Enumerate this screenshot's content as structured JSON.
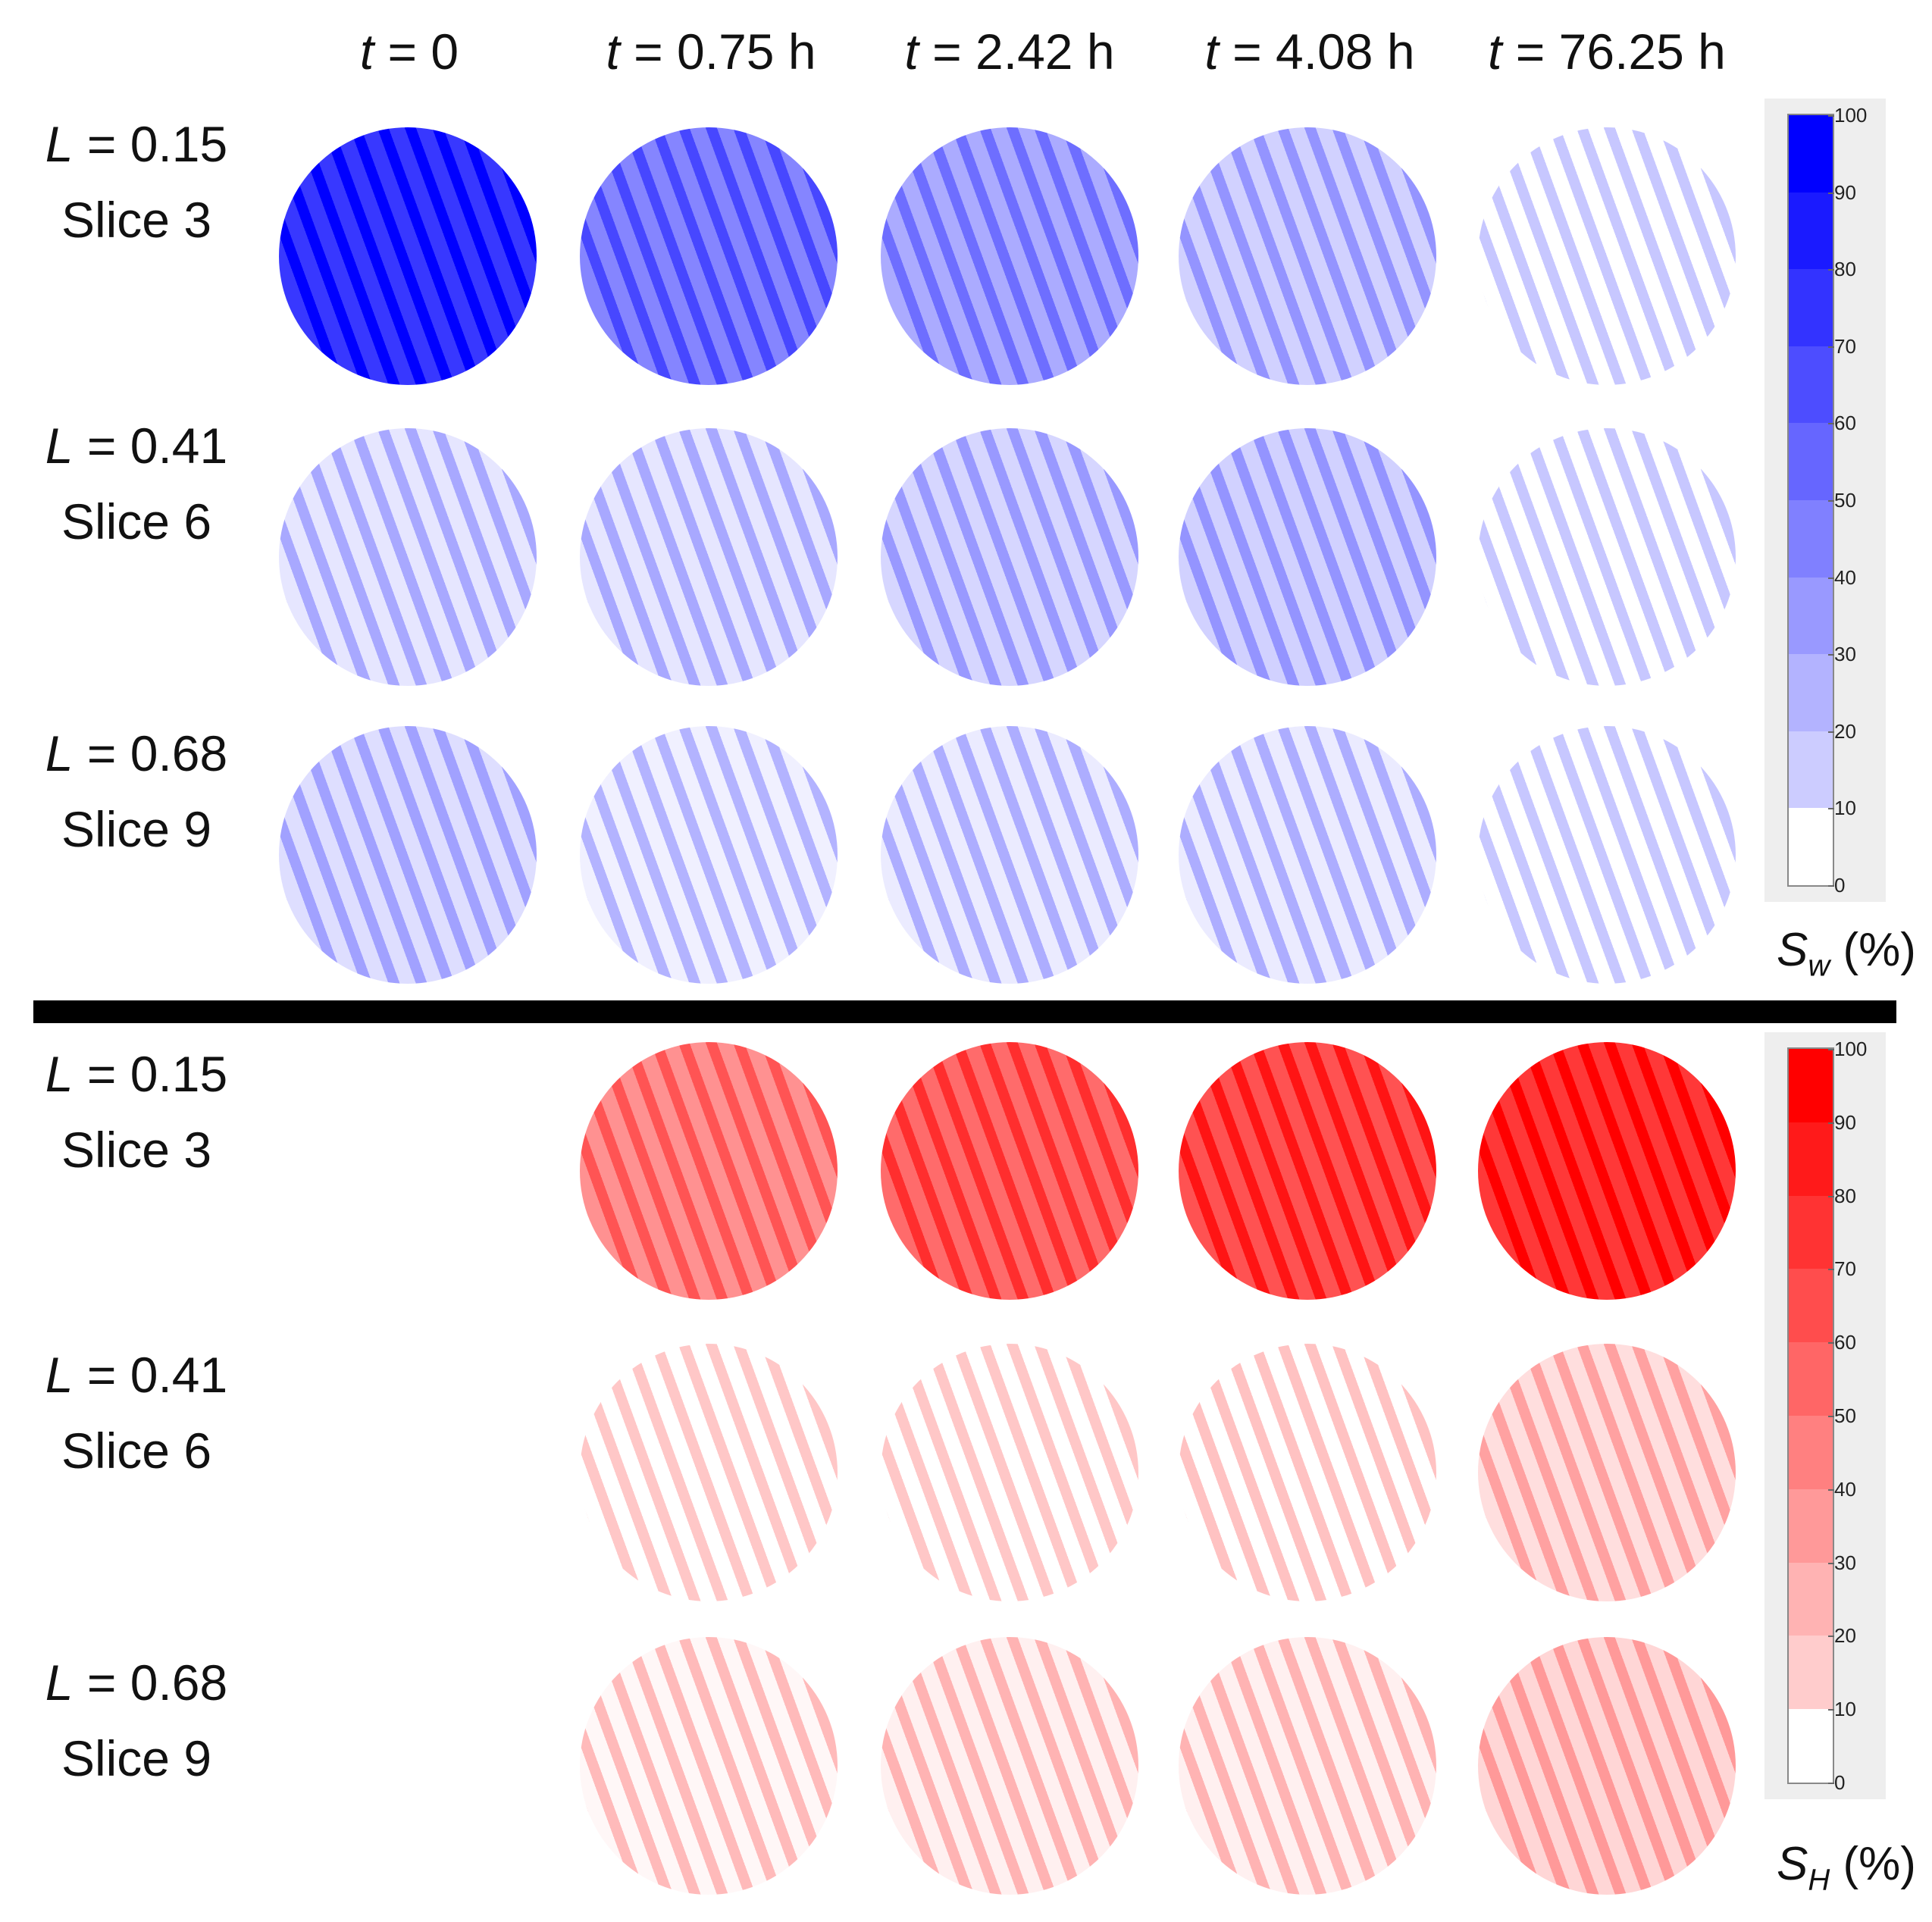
{
  "time_labels": [
    {
      "var": "t",
      "eq": " = ",
      "val": "0"
    },
    {
      "var": "t",
      "eq": " = ",
      "val": "0.75 h"
    },
    {
      "var": "t",
      "eq": " = ",
      "val": "2.42 h"
    },
    {
      "var": "t",
      "eq": " = ",
      "val": "4.08 h"
    },
    {
      "var": "t",
      "eq": " = ",
      "val": "76.25 h"
    }
  ],
  "water_panel": {
    "rows": [
      {
        "l_var": "L",
        "l_eq": " = ",
        "l_val": "0.15",
        "slice": "Slice 3",
        "levels": [
          90,
          60,
          45,
          30,
          10
        ]
      },
      {
        "l_var": "L",
        "l_eq": " = ",
        "l_val": "0.41",
        "slice": "Slice 6",
        "levels": [
          22,
          22,
          28,
          30,
          10
        ]
      },
      {
        "l_var": "L",
        "l_eq": " = ",
        "l_val": "0.68",
        "slice": "Slice 9",
        "levels": [
          25,
          18,
          20,
          20,
          10
        ]
      }
    ],
    "colorbar": {
      "ticks": [
        "100",
        "90",
        "80",
        "70",
        "60",
        "50",
        "40",
        "30",
        "20",
        "10",
        "0"
      ],
      "title_main": "S",
      "title_sub": "w",
      "title_unit": " (%)",
      "color": "#0000ff"
    }
  },
  "hydrogen_panel": {
    "rows": [
      {
        "l_var": "L",
        "l_eq": " = ",
        "l_val": "0.15",
        "slice": "Slice 3",
        "levels": [
          null,
          55,
          70,
          80,
          90
        ]
      },
      {
        "l_var": "L",
        "l_eq": " = ",
        "l_val": "0.41",
        "slice": "Slice 6",
        "levels": [
          null,
          10,
          10,
          12,
          25
        ]
      },
      {
        "l_var": "L",
        "l_eq": " = ",
        "l_val": "0.68",
        "slice": "Slice 9",
        "levels": [
          null,
          15,
          18,
          18,
          28
        ]
      }
    ],
    "colorbar": {
      "ticks": [
        "100",
        "90",
        "80",
        "70",
        "60",
        "50",
        "40",
        "30",
        "20",
        "10",
        "0"
      ],
      "title_main": "S",
      "title_sub": "H",
      "title_unit": " (%)",
      "color": "#ff0000"
    }
  }
}
